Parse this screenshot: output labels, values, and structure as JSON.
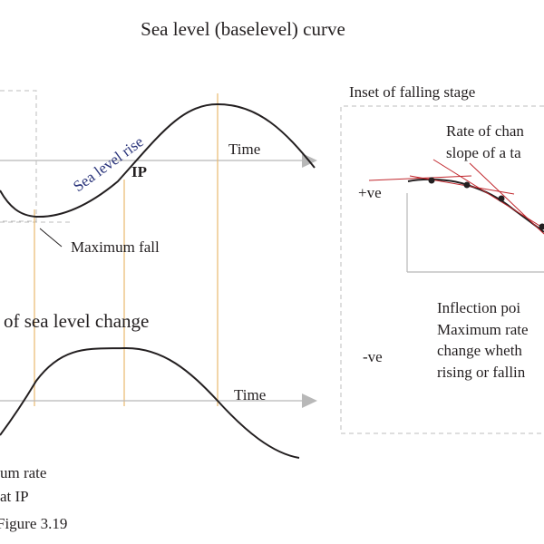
{
  "title": "Sea level (baselevel) curve",
  "top_panel": {
    "time_label": "Time",
    "curve_label": "Sea level rise",
    "ip_label": "IP",
    "max_fall_label": "Maximum fall"
  },
  "bottom_panel": {
    "title_partial": "of sea level change",
    "time_label": "Time",
    "note_line1": "um rate",
    "note_line2": "at IP"
  },
  "caption": "Figure 3.19",
  "inset": {
    "title": "Inset of falling stage",
    "rate_line1": "Rate of chan",
    "rate_line2": "slope of a ta",
    "positive_label": "+ve",
    "negative_label": "-ve",
    "inflection_line1": "Inflection poi",
    "inflection_line2": "Maximum rate",
    "inflection_line3": "change wheth",
    "inflection_line4": "rising or fallin"
  },
  "colors": {
    "curve": "#231f20",
    "axis": "#b8b8b8",
    "guide_line": "#e9b96e",
    "tangent": "#c1272d",
    "sea_level_text": "#29337a",
    "dashed_box": "#bdbdbd"
  }
}
